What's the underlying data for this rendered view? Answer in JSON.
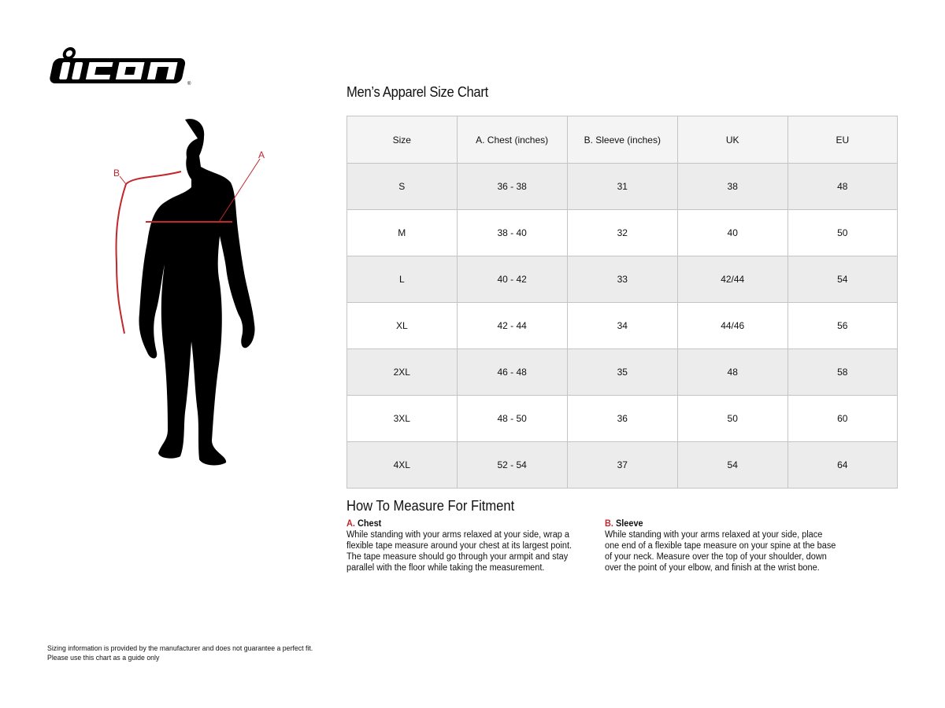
{
  "brand": {
    "logo_text": "icon"
  },
  "figure": {
    "label_a": "A",
    "label_b": "B",
    "accent_color": "#c1272d"
  },
  "title": "Men’s Apparel Size Chart",
  "table": {
    "headers": [
      "Size",
      "A. Chest (inches)",
      "B. Sleeve (inches)",
      "UK",
      "EU"
    ],
    "rows": [
      [
        "S",
        "36 - 38",
        "31",
        "38",
        "48"
      ],
      [
        "M",
        "38 - 40",
        "32",
        "40",
        "50"
      ],
      [
        "L",
        "40 - 42",
        "33",
        "42/44",
        "54"
      ],
      [
        "XL",
        "42 - 44",
        "34",
        "44/46",
        "56"
      ],
      [
        "2XL",
        "46 - 48",
        "35",
        "48",
        "58"
      ],
      [
        "3XL",
        "48 - 50",
        "36",
        "50",
        "60"
      ],
      [
        "4XL",
        "52 - 54",
        "37",
        "54",
        "64"
      ]
    ]
  },
  "measure": {
    "heading": "How To Measure For Fitment",
    "chest": {
      "letter": "A.",
      "label": "Chest",
      "text": "While standing with your arms relaxed at your side, wrap a flexible tape measure around your chest at its largest point. The tape measure should go through your armpit and stay parallel with the floor while taking the measurement."
    },
    "sleeve": {
      "letter": "B.",
      "label": "Sleeve",
      "text": "While standing with your arms relaxed at your side, place one end of a flexible tape measure on your spine at the base of your neck. Measure over the top of your shoulder, down over the point of your elbow, and finish at the wrist bone."
    }
  },
  "footer": {
    "line1": "Sizing information is provided by the manufacturer and does not guarantee a perfect fit.",
    "line2": "Please use this chart as a guide only"
  }
}
